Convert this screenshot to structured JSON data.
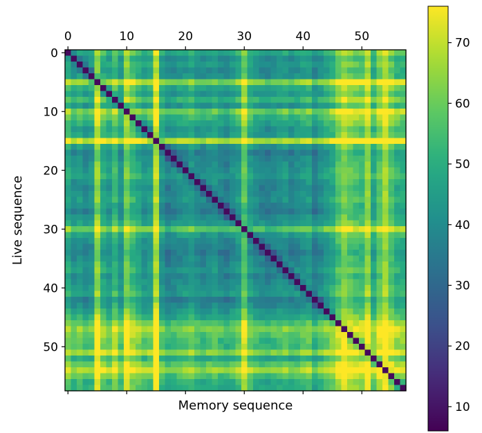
{
  "chart_data": {
    "type": "heatmap",
    "title": "",
    "xlabel": "Memory sequence",
    "ylabel": "Live sequence",
    "size": 58,
    "x_ticks": [
      0,
      10,
      20,
      30,
      40,
      50
    ],
    "y_ticks": [
      0,
      10,
      20,
      30,
      40,
      50
    ],
    "xlim": [
      -0.5,
      57.5
    ],
    "ylim": [
      57.5,
      -0.5
    ],
    "colorbar": {
      "range": [
        6,
        76
      ],
      "ticks": [
        10,
        20,
        30,
        40,
        50,
        60,
        70
      ],
      "colormap": "viridis"
    },
    "diagonal_value": 8,
    "row_profile": [
      48,
      41,
      44,
      40,
      42,
      63,
      48,
      44,
      52,
      42,
      60,
      52,
      48,
      43,
      45,
      68,
      42,
      36,
      38,
      40,
      42,
      44,
      40,
      38,
      40,
      42,
      38,
      36,
      40,
      44,
      58,
      44,
      40,
      38,
      36,
      38,
      40,
      42,
      38,
      40,
      42,
      44,
      36,
      40,
      44,
      48,
      56,
      62,
      58,
      55,
      54,
      64,
      48,
      58,
      66,
      56,
      50,
      50
    ],
    "col_profile": [
      48,
      41,
      44,
      40,
      42,
      63,
      48,
      44,
      52,
      42,
      60,
      52,
      48,
      43,
      45,
      68,
      42,
      36,
      38,
      40,
      42,
      44,
      40,
      38,
      40,
      42,
      38,
      36,
      40,
      44,
      58,
      44,
      40,
      38,
      36,
      38,
      40,
      42,
      38,
      40,
      42,
      44,
      36,
      40,
      44,
      48,
      56,
      62,
      58,
      55,
      54,
      64,
      48,
      58,
      66,
      56,
      50,
      50
    ],
    "baseline": 40
  }
}
